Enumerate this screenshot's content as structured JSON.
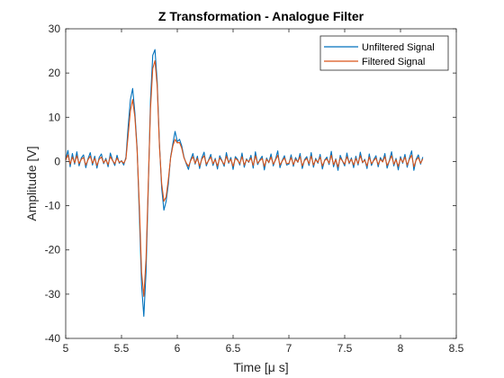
{
  "chart_data": {
    "type": "line",
    "title": "Z Transformation - Analogue Filter",
    "xlabel": "Time [μ s]",
    "ylabel": "Amplitude [V]",
    "xlim": [
      5,
      8.5
    ],
    "ylim": [
      -40,
      30
    ],
    "xticks": [
      5,
      5.5,
      6,
      6.5,
      7,
      7.5,
      8,
      8.5
    ],
    "yticks": [
      -40,
      -30,
      -20,
      -10,
      0,
      10,
      20,
      30
    ],
    "xtick_labels": [
      "5",
      "5.5",
      "6",
      "6.5",
      "7",
      "7.5",
      "8",
      "8.5"
    ],
    "ytick_labels": [
      "-40",
      "-30",
      "-20",
      "-10",
      "0",
      "10",
      "20",
      "30"
    ],
    "legend_position": "top-right",
    "grid": false,
    "series": [
      {
        "name": "Unfiltered Signal",
        "color": "#0072BD",
        "x": [
          5.0,
          5.02,
          5.04,
          5.06,
          5.08,
          5.1,
          5.12,
          5.14,
          5.16,
          5.18,
          5.2,
          5.22,
          5.24,
          5.26,
          5.28,
          5.3,
          5.32,
          5.34,
          5.36,
          5.38,
          5.4,
          5.42,
          5.44,
          5.46,
          5.48,
          5.5,
          5.52,
          5.54,
          5.56,
          5.58,
          5.6,
          5.62,
          5.64,
          5.66,
          5.68,
          5.7,
          5.72,
          5.74,
          5.76,
          5.78,
          5.8,
          5.82,
          5.84,
          5.86,
          5.88,
          5.9,
          5.92,
          5.94,
          5.96,
          5.98,
          6.0,
          6.02,
          6.04,
          6.06,
          6.08,
          6.1,
          6.12,
          6.14,
          6.16,
          6.18,
          6.2,
          6.22,
          6.24,
          6.26,
          6.28,
          6.3,
          6.32,
          6.34,
          6.36,
          6.38,
          6.4,
          6.42,
          6.44,
          6.46,
          6.48,
          6.5,
          6.52,
          6.54,
          6.56,
          6.58,
          6.6,
          6.62,
          6.64,
          6.66,
          6.68,
          6.7,
          6.72,
          6.74,
          6.76,
          6.78,
          6.8,
          6.82,
          6.84,
          6.86,
          6.88,
          6.9,
          6.92,
          6.94,
          6.96,
          6.98,
          7.0,
          7.02,
          7.04,
          7.06,
          7.08,
          7.1,
          7.12,
          7.14,
          7.16,
          7.18,
          7.2,
          7.22,
          7.24,
          7.26,
          7.28,
          7.3,
          7.32,
          7.34,
          7.36,
          7.38,
          7.4,
          7.42,
          7.44,
          7.46,
          7.48,
          7.5,
          7.52,
          7.54,
          7.56,
          7.58,
          7.6,
          7.62,
          7.64,
          7.66,
          7.68,
          7.7,
          7.72,
          7.74,
          7.76,
          7.78,
          7.8,
          7.82,
          7.84,
          7.86,
          7.88,
          7.9,
          7.92,
          7.94,
          7.96,
          7.98,
          8.0,
          8.02,
          8.04,
          8.06,
          8.08,
          8.1,
          8.12,
          8.14,
          8.16,
          8.18,
          8.2
        ],
        "y": [
          0.5,
          2.5,
          -1.2,
          1.8,
          -0.6,
          2.2,
          -1.0,
          0.8,
          1.5,
          -1.4,
          0.6,
          2.0,
          -0.8,
          1.2,
          -1.5,
          0.9,
          1.7,
          -0.5,
          0.7,
          -1.2,
          1.9,
          0.3,
          -0.9,
          1.4,
          -0.4,
          0.2,
          -0.8,
          1.0,
          8.0,
          14.0,
          16.5,
          11.0,
          3.0,
          -12.0,
          -28.0,
          -35.0,
          -25.0,
          -6.0,
          14.0,
          24.0,
          25.3,
          18.0,
          4.0,
          -6.0,
          -11.0,
          -9.0,
          -5.0,
          1.0,
          4.0,
          6.8,
          4.5,
          5.0,
          3.5,
          1.0,
          -0.5,
          -1.8,
          0.4,
          1.8,
          -0.6,
          1.2,
          -1.6,
          0.8,
          2.1,
          -1.0,
          0.3,
          1.6,
          -0.9,
          0.7,
          -1.7,
          1.3,
          0.2,
          -1.1,
          2.0,
          -0.4,
          0.9,
          -1.8,
          1.1,
          0.5,
          -0.8,
          1.9,
          -1.3,
          0.6,
          -0.2,
          1.4,
          -1.5,
          2.2,
          -0.7,
          0.4,
          1.2,
          -1.9,
          0.8,
          -0.3,
          1.7,
          -1.0,
          0.5,
          2.4,
          -1.4,
          0.2,
          1.3,
          -0.8,
          -0.6,
          1.5,
          -1.1,
          0.9,
          -0.2,
          1.8,
          -1.6,
          0.4,
          1.1,
          -0.9,
          2.0,
          -1.3,
          0.7,
          -0.4,
          1.6,
          -1.7,
          0.3,
          1.0,
          -0.7,
          2.3,
          -1.2,
          0.6,
          -2.0,
          1.4,
          0.1,
          -1.0,
          1.9,
          -0.5,
          0.8,
          -1.4,
          1.2,
          -0.8,
          2.1,
          -0.3,
          0.5,
          -1.6,
          1.7,
          -0.9,
          0.4,
          1.3,
          -1.2,
          0.9,
          -0.1,
          1.8,
          -1.5,
          0.2,
          2.2,
          -1.0,
          0.7,
          -1.9,
          1.1,
          -0.4,
          1.6,
          -1.3,
          0.8,
          2.4,
          -2.0,
          0.5,
          1.5,
          -0.6,
          1.0
        ]
      },
      {
        "name": "Filtered Signal",
        "color": "#D95319",
        "x": [
          5.0,
          5.02,
          5.04,
          5.06,
          5.08,
          5.1,
          5.12,
          5.14,
          5.16,
          5.18,
          5.2,
          5.22,
          5.24,
          5.26,
          5.28,
          5.3,
          5.32,
          5.34,
          5.36,
          5.38,
          5.4,
          5.42,
          5.44,
          5.46,
          5.48,
          5.5,
          5.52,
          5.54,
          5.56,
          5.58,
          5.6,
          5.62,
          5.64,
          5.66,
          5.68,
          5.7,
          5.72,
          5.74,
          5.76,
          5.78,
          5.8,
          5.82,
          5.84,
          5.86,
          5.88,
          5.9,
          5.92,
          5.94,
          5.96,
          5.98,
          6.0,
          6.02,
          6.04,
          6.06,
          6.08,
          6.1,
          6.12,
          6.14,
          6.16,
          6.18,
          6.2,
          6.22,
          6.24,
          6.26,
          6.28,
          6.3,
          6.32,
          6.34,
          6.36,
          6.38,
          6.4,
          6.42,
          6.44,
          6.46,
          6.48,
          6.5,
          6.52,
          6.54,
          6.56,
          6.58,
          6.6,
          6.62,
          6.64,
          6.66,
          6.68,
          6.7,
          6.72,
          6.74,
          6.76,
          6.78,
          6.8,
          6.82,
          6.84,
          6.86,
          6.88,
          6.9,
          6.92,
          6.94,
          6.96,
          6.98,
          7.0,
          7.02,
          7.04,
          7.06,
          7.08,
          7.1,
          7.12,
          7.14,
          7.16,
          7.18,
          7.2,
          7.22,
          7.24,
          7.26,
          7.28,
          7.3,
          7.32,
          7.34,
          7.36,
          7.38,
          7.4,
          7.42,
          7.44,
          7.46,
          7.48,
          7.5,
          7.52,
          7.54,
          7.56,
          7.58,
          7.6,
          7.62,
          7.64,
          7.66,
          7.68,
          7.7,
          7.72,
          7.74,
          7.76,
          7.78,
          7.8,
          7.82,
          7.84,
          7.86,
          7.88,
          7.9,
          7.92,
          7.94,
          7.96,
          7.98,
          8.0,
          8.02,
          8.04,
          8.06,
          8.08,
          8.1,
          8.12,
          8.14,
          8.16,
          8.18,
          8.2
        ],
        "y": [
          0.3,
          1.5,
          -0.6,
          1.0,
          -0.3,
          1.3,
          -0.5,
          0.5,
          0.9,
          -0.8,
          0.4,
          1.2,
          -0.4,
          0.7,
          -0.9,
          0.5,
          1.0,
          -0.3,
          0.4,
          -0.7,
          1.1,
          0.2,
          -0.5,
          0.8,
          -0.2,
          0.1,
          -0.4,
          0.6,
          6.0,
          11.5,
          14.0,
          10.0,
          2.5,
          -10.0,
          -25.0,
          -30.5,
          -22.0,
          -5.0,
          12.0,
          21.0,
          22.8,
          17.0,
          3.5,
          -5.0,
          -9.0,
          -8.0,
          -4.0,
          0.8,
          3.5,
          5.0,
          4.2,
          4.3,
          3.0,
          0.8,
          -0.3,
          -1.1,
          0.2,
          1.1,
          -0.4,
          0.7,
          -1.0,
          0.5,
          1.3,
          -0.6,
          0.2,
          1.0,
          -0.5,
          0.4,
          -1.0,
          0.8,
          0.1,
          -0.7,
          1.2,
          -0.2,
          0.5,
          -1.1,
          0.7,
          0.3,
          -0.5,
          1.1,
          -0.8,
          0.4,
          -0.1,
          0.8,
          -0.9,
          1.3,
          -0.4,
          0.2,
          0.7,
          -1.1,
          0.5,
          -0.2,
          1.0,
          -0.6,
          0.3,
          1.4,
          -0.8,
          0.1,
          0.8,
          -0.5,
          -0.4,
          0.9,
          -0.7,
          0.5,
          -0.1,
          1.1,
          -1.0,
          0.2,
          0.7,
          -0.5,
          1.2,
          -0.8,
          0.4,
          -0.2,
          1.0,
          -1.0,
          0.2,
          0.6,
          -0.4,
          1.4,
          -0.7,
          0.4,
          -1.2,
          0.8,
          0.1,
          -0.6,
          1.1,
          -0.3,
          0.5,
          -0.8,
          0.7,
          -0.5,
          1.3,
          -0.2,
          0.3,
          -1.0,
          1.0,
          -0.5,
          0.2,
          0.8,
          -0.7,
          0.5,
          -0.1,
          1.1,
          -0.9,
          0.1,
          1.3,
          -0.6,
          0.4,
          -1.1,
          0.7,
          -0.2,
          1.0,
          -0.8,
          0.5,
          1.4,
          -1.2,
          0.3,
          0.9,
          -0.4,
          0.6
        ]
      }
    ]
  }
}
